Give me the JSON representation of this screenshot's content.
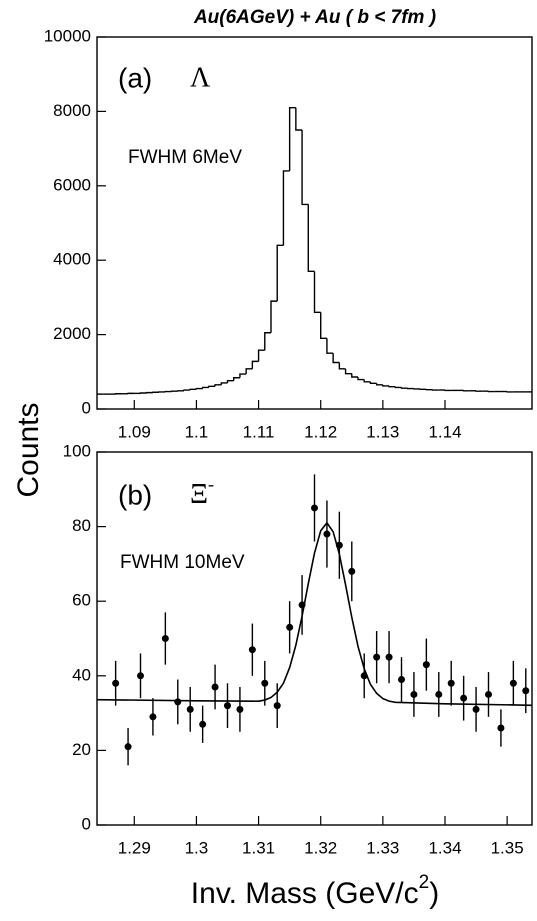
{
  "chart_data": [
    {
      "type": "histogram",
      "title": "Au(6AGeV) + Au ( b < 7fm )",
      "ylabel": "Counts",
      "annotations": [
        "(a)",
        "Λ",
        "FWHM 6MeV"
      ],
      "xlim": [
        1.084,
        1.154
      ],
      "xticks": [
        1.09,
        1.1,
        1.11,
        1.12,
        1.13,
        1.14
      ],
      "ylim": [
        0,
        10000
      ],
      "yticks": [
        0,
        2000,
        4000,
        6000,
        8000,
        10000
      ],
      "color": "#000000",
      "bins": [
        1.084,
        1.085,
        1.086,
        1.087,
        1.088,
        1.089,
        1.09,
        1.091,
        1.092,
        1.093,
        1.094,
        1.095,
        1.096,
        1.097,
        1.098,
        1.099,
        1.1,
        1.101,
        1.102,
        1.103,
        1.104,
        1.105,
        1.106,
        1.107,
        1.108,
        1.109,
        1.11,
        1.111,
        1.112,
        1.113,
        1.114,
        1.115,
        1.116,
        1.117,
        1.118,
        1.119,
        1.12,
        1.121,
        1.122,
        1.123,
        1.124,
        1.125,
        1.126,
        1.127,
        1.128,
        1.129,
        1.13,
        1.131,
        1.132,
        1.133,
        1.134,
        1.135,
        1.136,
        1.137,
        1.138,
        1.139,
        1.14,
        1.141,
        1.142,
        1.143,
        1.144,
        1.145,
        1.146,
        1.147,
        1.148,
        1.149,
        1.15,
        1.151,
        1.152,
        1.153,
        1.154
      ],
      "counts": [
        400,
        400,
        400,
        410,
        410,
        420,
        420,
        430,
        440,
        450,
        460,
        470,
        480,
        490,
        510,
        530,
        550,
        580,
        610,
        650,
        700,
        760,
        840,
        940,
        1080,
        1280,
        1580,
        2050,
        2900,
        4400,
        6400,
        8100,
        7500,
        5500,
        3700,
        2600,
        1900,
        1500,
        1250,
        1080,
        950,
        860,
        790,
        730,
        690,
        650,
        620,
        600,
        580,
        560,
        550,
        540,
        530,
        520,
        510,
        510,
        500,
        500,
        500,
        490,
        490,
        480,
        480,
        470,
        470,
        470,
        460,
        460,
        460,
        460
      ]
    },
    {
      "type": "scatter",
      "xlabel": [
        "Inv. Mass (GeV/c",
        "2",
        ")"
      ],
      "annotations": [
        "(b)",
        "Ξ",
        "-",
        "FWHM 10MeV"
      ],
      "xlim": [
        1.284,
        1.354
      ],
      "xticks": [
        1.29,
        1.3,
        1.31,
        1.32,
        1.33,
        1.34,
        1.35
      ],
      "ylim": [
        0,
        100
      ],
      "yticks": [
        0,
        20,
        40,
        60,
        80,
        100
      ],
      "color": "#000000",
      "x": [
        1.287,
        1.289,
        1.291,
        1.293,
        1.295,
        1.297,
        1.299,
        1.301,
        1.303,
        1.305,
        1.307,
        1.309,
        1.311,
        1.313,
        1.315,
        1.317,
        1.319,
        1.321,
        1.323,
        1.325,
        1.327,
        1.329,
        1.331,
        1.333,
        1.335,
        1.337,
        1.339,
        1.341,
        1.343,
        1.345,
        1.347,
        1.349,
        1.351,
        1.353
      ],
      "values": [
        38,
        21,
        40,
        29,
        50,
        33,
        31,
        27,
        37,
        32,
        31,
        47,
        38,
        32,
        53,
        59,
        85,
        78,
        75,
        68,
        40,
        45,
        45,
        39,
        35,
        43,
        35,
        38,
        34,
        31,
        35,
        26,
        38,
        36
      ],
      "errors": [
        6,
        5,
        6,
        5,
        7,
        6,
        6,
        5,
        6,
        6,
        6,
        7,
        6,
        6,
        7,
        8,
        9,
        9,
        9,
        8,
        6,
        7,
        7,
        6,
        6,
        7,
        6,
        6,
        6,
        6,
        6,
        5,
        6,
        6
      ],
      "fit": {
        "x": [
          1.284,
          1.3,
          1.31,
          1.311,
          1.312,
          1.313,
          1.314,
          1.315,
          1.316,
          1.317,
          1.318,
          1.319,
          1.32,
          1.321,
          1.322,
          1.323,
          1.324,
          1.325,
          1.326,
          1.327,
          1.328,
          1.329,
          1.33,
          1.331,
          1.332,
          1.34,
          1.354
        ],
        "values": [
          33.6,
          33.3,
          33.2,
          33.5,
          34.2,
          35.6,
          38,
          42.2,
          48.2,
          56,
          64.7,
          72.9,
          78.9,
          81,
          78.6,
          72.6,
          64.4,
          55.7,
          47.9,
          41.9,
          37.7,
          35.3,
          33.9,
          33.2,
          32.9,
          32.5,
          32.1
        ]
      }
    }
  ]
}
